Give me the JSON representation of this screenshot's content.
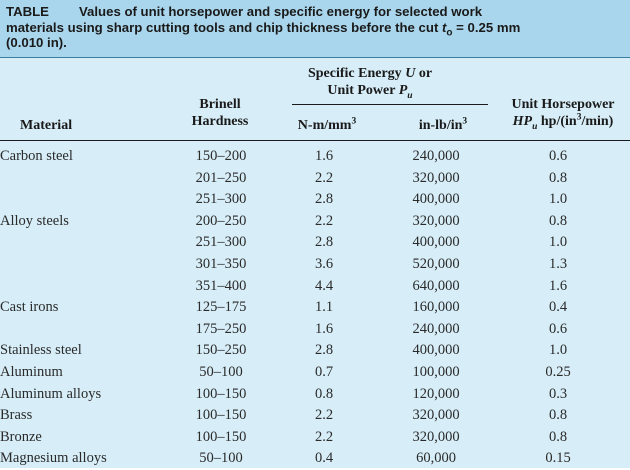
{
  "caption": {
    "label": "TABLE",
    "text_line1": "Values of unit horsepower and specific energy for selected work",
    "text_line2_pre": "materials using sharp cutting tools and chip thickness before the cut ",
    "symbol": "t",
    "subscript": "o",
    "text_line2_post": " = 0.25 mm",
    "text_line3": "(0.010 in)."
  },
  "header": {
    "group": {
      "line1": "Specific Energy ",
      "line1_symbol": "U",
      "line1_post": " or",
      "line2": "Unit Power ",
      "line2_symbol": "P",
      "line2_sub": "u"
    },
    "material": "Material",
    "brinell_line1": "Brinell",
    "brinell_line2": "Hardness",
    "metric_unit": "N-m/mm",
    "metric_sup": "3",
    "imperial_unit": "in-lb/in",
    "imperial_sup": "3",
    "uhp_line1": "Unit Horsepower",
    "uhp_symbol": "HP",
    "uhp_sub": "u",
    "uhp_unit_pre": " hp/(in",
    "uhp_unit_sup": "3",
    "uhp_unit_post": "/min)"
  },
  "rows": [
    {
      "material": "Carbon steel",
      "hardness": "150–200",
      "metric": "1.6",
      "imperial": "240,000",
      "hp": "0.6"
    },
    {
      "material": "",
      "hardness": "201–250",
      "metric": "2.2",
      "imperial": "320,000",
      "hp": "0.8"
    },
    {
      "material": "",
      "hardness": "251–300",
      "metric": "2.8",
      "imperial": "400,000",
      "hp": "1.0"
    },
    {
      "material": "Alloy steels",
      "hardness": "200–250",
      "metric": "2.2",
      "imperial": "320,000",
      "hp": "0.8"
    },
    {
      "material": "",
      "hardness": "251–300",
      "metric": "2.8",
      "imperial": "400,000",
      "hp": "1.0"
    },
    {
      "material": "",
      "hardness": "301–350",
      "metric": "3.6",
      "imperial": "520,000",
      "hp": "1.3"
    },
    {
      "material": "",
      "hardness": "351–400",
      "metric": "4.4",
      "imperial": "640,000",
      "hp": "1.6"
    },
    {
      "material": "Cast irons",
      "hardness": "125–175",
      "metric": "1.1",
      "imperial": "160,000",
      "hp": "0.4"
    },
    {
      "material": "",
      "hardness": "175–250",
      "metric": "1.6",
      "imperial": "240,000",
      "hp": "0.6"
    },
    {
      "material": "Stainless steel",
      "hardness": "150–250",
      "metric": "2.8",
      "imperial": "400,000",
      "hp": "1.0"
    },
    {
      "material": "Aluminum",
      "hardness": "50–100",
      "metric": "0.7",
      "imperial": "100,000",
      "hp": "0.25"
    },
    {
      "material": "Aluminum alloys",
      "hardness": "100–150",
      "metric": "0.8",
      "imperial": "120,000",
      "hp": "0.3"
    },
    {
      "material": "Brass",
      "hardness": "100–150",
      "metric": "2.2",
      "imperial": "320,000",
      "hp": "0.8"
    },
    {
      "material": "Bronze",
      "hardness": "100–150",
      "metric": "2.2",
      "imperial": "320,000",
      "hp": "0.8"
    },
    {
      "material": "Magnesium alloys",
      "hardness": "50–100",
      "metric": "0.4",
      "imperial": "60,000",
      "hp": "0.15"
    }
  ],
  "colors": {
    "body_background": "#d7eef8",
    "caption_background": "#a9d6ec",
    "text": "#1a1a1a"
  }
}
